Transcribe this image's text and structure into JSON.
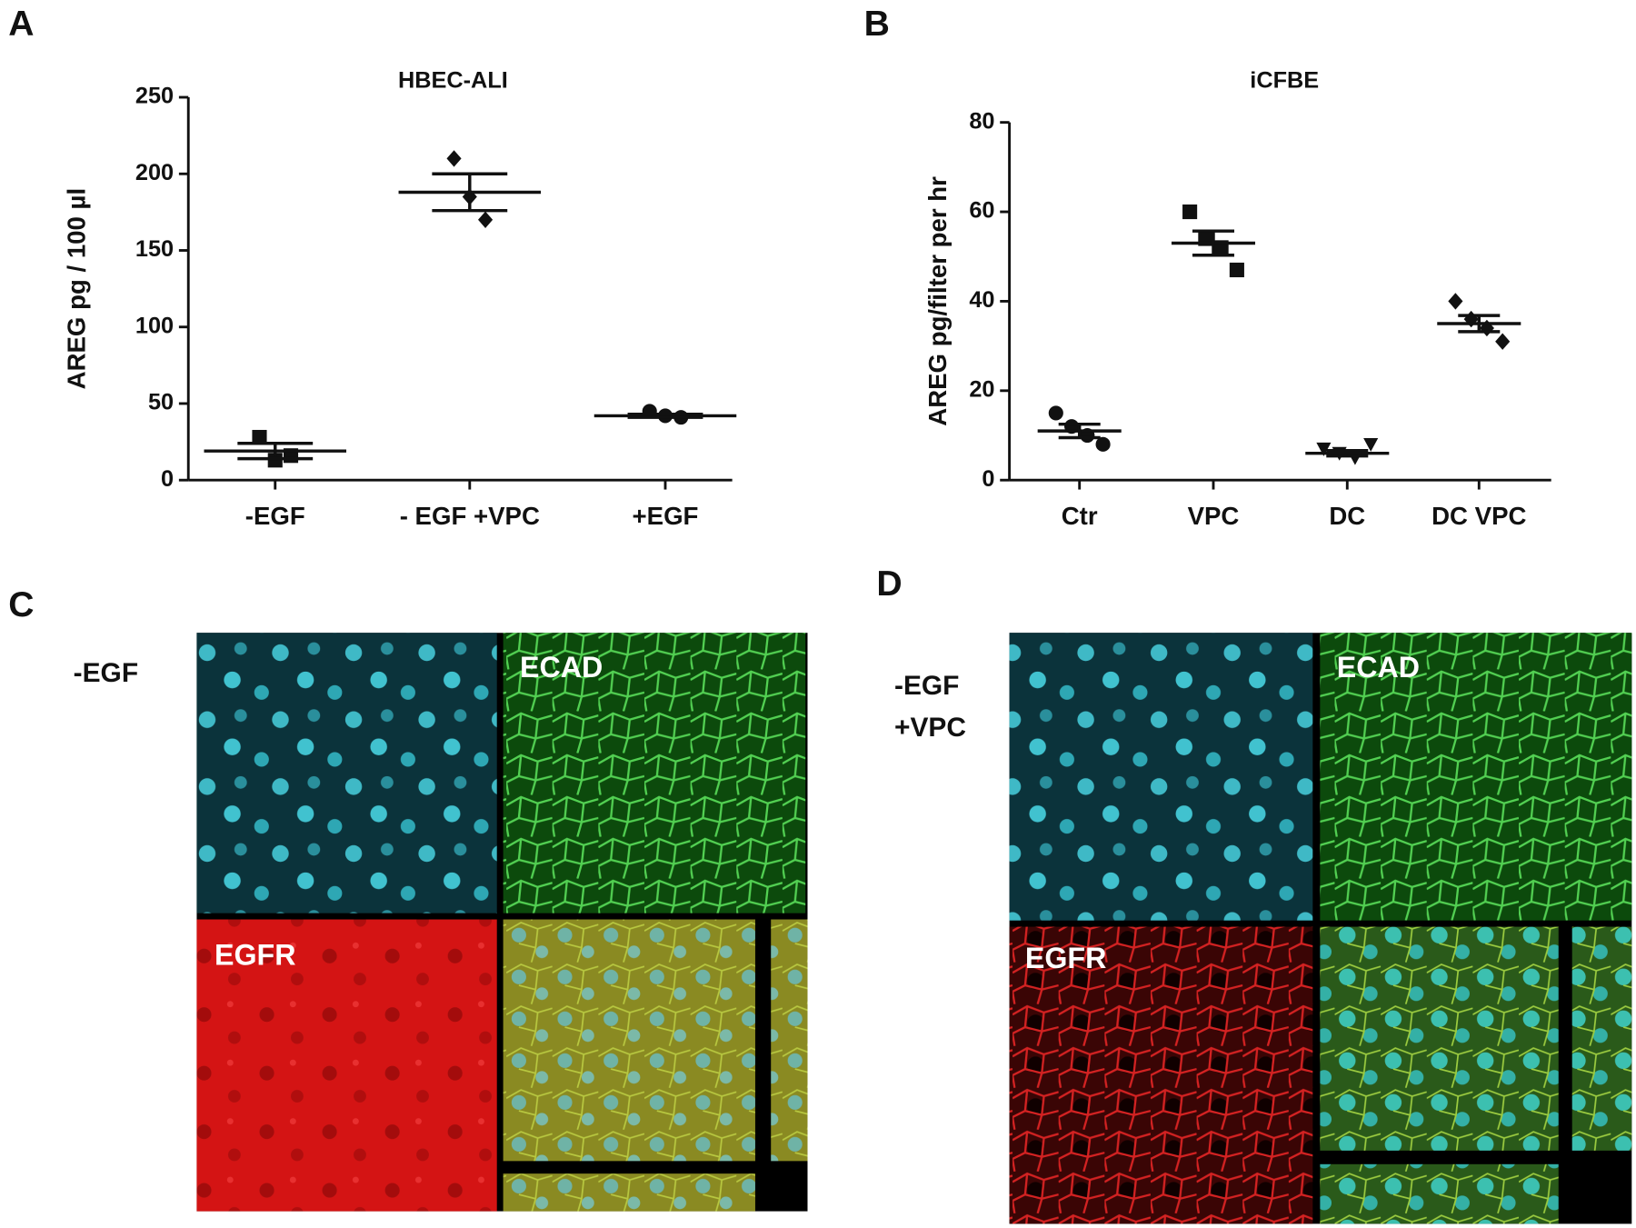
{
  "chart_data": [
    {
      "type": "scatter",
      "panel": "A",
      "title": "HBEC-ALI",
      "y_label": "AREG pg / 100 µl",
      "categories": [
        "-EGF",
        "- EGF +VPC",
        "+EGF"
      ],
      "values": [
        [
          28,
          13,
          16
        ],
        [
          210,
          185,
          170
        ],
        [
          45,
          42,
          41
        ]
      ],
      "means": [
        19,
        188,
        42
      ],
      "sems": [
        5,
        12,
        1
      ],
      "markers": [
        "square",
        "diamond",
        "circle"
      ],
      "color": "#111111",
      "ylim": [
        0,
        250
      ],
      "yticks": [
        0,
        50,
        100,
        150,
        200,
        250
      ]
    },
    {
      "type": "scatter",
      "panel": "B",
      "title": "iCFBE",
      "y_label": "AREG pg/filter per hr",
      "categories": [
        "Ctr",
        "VPC",
        "DC",
        "DC VPC"
      ],
      "values": [
        [
          15,
          12,
          10,
          8
        ],
        [
          60,
          54,
          52,
          47
        ],
        [
          7,
          6,
          5,
          8
        ],
        [
          40,
          36,
          34,
          31
        ]
      ],
      "means": [
        11,
        53,
        6,
        35
      ],
      "sems": [
        1.5,
        2.7,
        0.6,
        1.8
      ],
      "markers": [
        "circle",
        "square",
        "triangle-down",
        "diamond"
      ],
      "color": "#111111",
      "ylim": [
        0,
        80
      ],
      "yticks": [
        0,
        20,
        40,
        60,
        80
      ]
    }
  ],
  "images": [
    {
      "panel": "C",
      "condition": [
        "-EGF"
      ],
      "ecad": "ECAD",
      "egfr": "EGFR"
    },
    {
      "panel": "D",
      "condition": [
        "-EGF",
        "+VPC"
      ],
      "ecad": "ECAD",
      "egfr": "EGFR"
    }
  ]
}
